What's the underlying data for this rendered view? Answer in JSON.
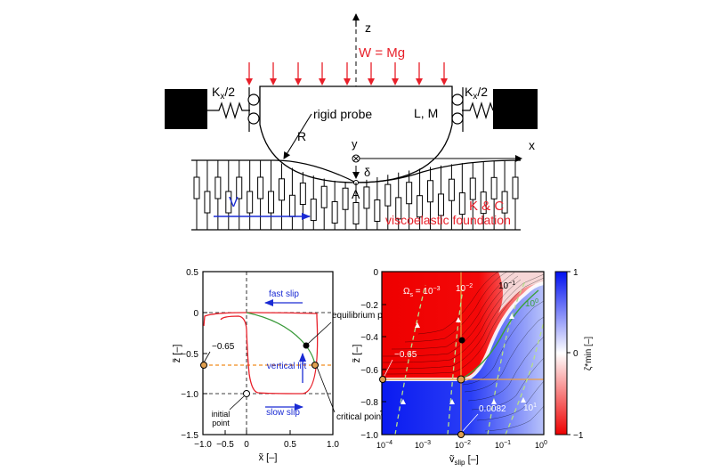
{
  "top_diagram": {
    "axis_z": "z",
    "axis_x": "x",
    "axis_y": "y",
    "load_label": "W = Mg",
    "spring_left": "K",
    "spring_left_sub": "x",
    "spring_left_tail": "/2",
    "spring_right": "K",
    "spring_right_sub": "x",
    "spring_right_tail": "/2",
    "probe_label": "rigid probe",
    "radius_label": "R",
    "length_mass_label": "L, M",
    "indent_label": "δ",
    "point_a_label": "A",
    "velocity_label": "V",
    "kc_label": "K & C",
    "foundation_label": "viscoelastic foundation",
    "colors": {
      "load": "#e8202a",
      "velocity": "#1a2bd4",
      "foundation": "#e8202a"
    }
  },
  "phase_plot": {
    "ylabel": "z̃ [–]",
    "xlabel": "x̃ [–]",
    "yticks": [
      "0.5",
      "0",
      "−0.5",
      "−1.0",
      "−1.5"
    ],
    "xticks": [
      "−1.0",
      "−0.5",
      "0",
      "0.5",
      "1.0"
    ],
    "label_065": "−0.65",
    "fast_slip": "fast slip",
    "slow_slip": "slow slip",
    "vertical_lift": "vertical lift",
    "initial_point_1": "initial",
    "initial_point_2": "point",
    "equilibrium_point": "equilibrium point",
    "critical_point": "critical point"
  },
  "map_plot": {
    "ylabel": "z̃ [–]",
    "xlabel_main": "ṽ",
    "xlabel_sub": "slip",
    "xlabel_tail": " [–]",
    "yticks": [
      "0",
      "−0.2",
      "−0.4",
      "−0.6",
      "−0.8",
      "−1.0"
    ],
    "xticks_base": [
      "10",
      "10",
      "10",
      "10",
      "10"
    ],
    "xticks_exp": [
      "−4",
      "−3",
      "−2",
      "−1",
      "0"
    ],
    "omega_label": "Ω",
    "omega_sub": "s",
    "omega_eq": " = 10",
    "omega_exp": "−3",
    "contour_1e2": "10",
    "contour_1e2_exp": "−2",
    "contour_1e1": "10",
    "contour_1e1_exp": "−1",
    "contour_1e0": "10",
    "contour_1e0_exp": "0",
    "contour_1e1b": "10",
    "contour_1e1b_exp": "1",
    "label_065": "−0.65",
    "label_0082": "0.0082"
  },
  "colorbar": {
    "ticks": [
      "1",
      "0",
      "−1"
    ],
    "label": "ζ*min [–]"
  }
}
